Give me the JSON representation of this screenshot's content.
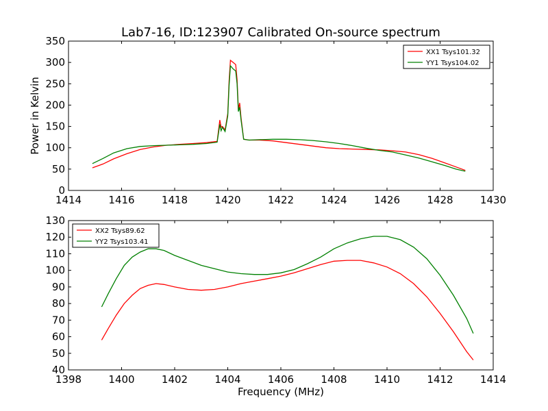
{
  "chart_data": [
    {
      "type": "line",
      "title": "Lab7-16, ID:123907 Calibrated On-source spectrum",
      "xlabel": "",
      "ylabel": "Power in Kelvin",
      "xlim": [
        1414,
        1430
      ],
      "ylim": [
        0,
        350
      ],
      "xticks": [
        1414,
        1416,
        1418,
        1420,
        1422,
        1424,
        1426,
        1428,
        1430
      ],
      "yticks": [
        0,
        50,
        100,
        150,
        200,
        250,
        300,
        350
      ],
      "grid": false,
      "legend_position": "top-right",
      "series": [
        {
          "name": "XX1 Tsys101.32",
          "color": "#ff0000",
          "x": [
            1414.9,
            1415.3,
            1415.7,
            1416.2,
            1416.7,
            1417.2,
            1417.7,
            1418.2,
            1418.7,
            1419.2,
            1419.6,
            1419.7,
            1419.75,
            1419.8,
            1419.9,
            1420.0,
            1420.05,
            1420.1,
            1420.2,
            1420.3,
            1420.35,
            1420.4,
            1420.45,
            1420.5,
            1420.6,
            1420.8,
            1421.2,
            1421.7,
            1422.2,
            1422.7,
            1423.2,
            1423.7,
            1424.2,
            1424.7,
            1425.2,
            1425.7,
            1426.2,
            1426.7,
            1427.2,
            1427.7,
            1428.2,
            1428.6,
            1428.95
          ],
          "y": [
            53,
            62,
            74,
            86,
            96,
            102,
            106,
            108,
            110,
            112,
            115,
            165,
            148,
            150,
            142,
            180,
            255,
            305,
            300,
            295,
            260,
            190,
            205,
            170,
            120,
            118,
            118,
            116,
            112,
            108,
            104,
            100,
            98,
            97,
            96,
            95,
            93,
            90,
            84,
            75,
            64,
            55,
            47
          ]
        },
        {
          "name": "YY1 Tsys104.02",
          "color": "#008000",
          "x": [
            1414.9,
            1415.3,
            1415.7,
            1416.2,
            1416.7,
            1417.2,
            1417.7,
            1418.2,
            1418.7,
            1419.2,
            1419.6,
            1419.7,
            1419.75,
            1419.8,
            1419.9,
            1420.0,
            1420.05,
            1420.1,
            1420.2,
            1420.3,
            1420.35,
            1420.4,
            1420.45,
            1420.5,
            1420.6,
            1420.8,
            1421.2,
            1421.7,
            1422.2,
            1422.7,
            1423.2,
            1423.7,
            1424.2,
            1424.7,
            1425.2,
            1425.7,
            1426.2,
            1426.7,
            1427.2,
            1427.7,
            1428.2,
            1428.6,
            1428.95
          ],
          "y": [
            63,
            75,
            88,
            98,
            103,
            105,
            106,
            107,
            108,
            110,
            113,
            155,
            140,
            148,
            138,
            175,
            245,
            292,
            285,
            280,
            250,
            185,
            195,
            165,
            120,
            118,
            119,
            120,
            120,
            119,
            117,
            114,
            110,
            105,
            99,
            94,
            90,
            83,
            76,
            67,
            58,
            50,
            45
          ]
        }
      ]
    },
    {
      "type": "line",
      "title": "",
      "xlabel": "Frequency (MHz)",
      "ylabel": "",
      "xlim": [
        1398,
        1414
      ],
      "ylim": [
        40,
        130
      ],
      "xticks": [
        1398,
        1400,
        1402,
        1404,
        1406,
        1408,
        1410,
        1412,
        1414
      ],
      "yticks": [
        40,
        50,
        60,
        70,
        80,
        90,
        100,
        110,
        120,
        130
      ],
      "grid": false,
      "legend_position": "top-left",
      "series": [
        {
          "name": "XX2 Tsys89.62",
          "color": "#ff0000",
          "x": [
            1399.25,
            1399.5,
            1399.8,
            1400.1,
            1400.4,
            1400.7,
            1401.0,
            1401.3,
            1401.6,
            1402.0,
            1402.5,
            1403.0,
            1403.5,
            1404.0,
            1404.5,
            1405.0,
            1405.5,
            1406.0,
            1406.5,
            1407.0,
            1407.5,
            1408.0,
            1408.5,
            1409.0,
            1409.5,
            1410.0,
            1410.5,
            1411.0,
            1411.5,
            1412.0,
            1412.5,
            1413.0,
            1413.25
          ],
          "y": [
            58,
            65,
            73,
            80,
            85,
            89,
            91,
            92,
            91.5,
            90,
            88.5,
            88,
            88.5,
            90,
            92,
            93.5,
            95,
            96.5,
            98.5,
            101,
            103.5,
            105.5,
            106,
            106,
            104.5,
            102,
            98,
            92,
            84,
            74,
            63,
            51,
            46
          ]
        },
        {
          "name": "YY2 Tsys103.41",
          "color": "#008000",
          "x": [
            1399.25,
            1399.5,
            1399.8,
            1400.1,
            1400.4,
            1400.7,
            1401.0,
            1401.3,
            1401.6,
            1402.0,
            1402.5,
            1403.0,
            1403.5,
            1404.0,
            1404.5,
            1405.0,
            1405.5,
            1406.0,
            1406.5,
            1407.0,
            1407.5,
            1408.0,
            1408.5,
            1409.0,
            1409.5,
            1410.0,
            1410.5,
            1411.0,
            1411.5,
            1412.0,
            1412.5,
            1413.0,
            1413.25
          ],
          "y": [
            78,
            86,
            95,
            103,
            108,
            111,
            113,
            113,
            112,
            109,
            106,
            103,
            101,
            99,
            98,
            97.5,
            97.5,
            98.5,
            100.5,
            104,
            108,
            113,
            116.5,
            119,
            120.5,
            120.5,
            118.5,
            114,
            107,
            97,
            85,
            71,
            62
          ]
        }
      ]
    }
  ]
}
